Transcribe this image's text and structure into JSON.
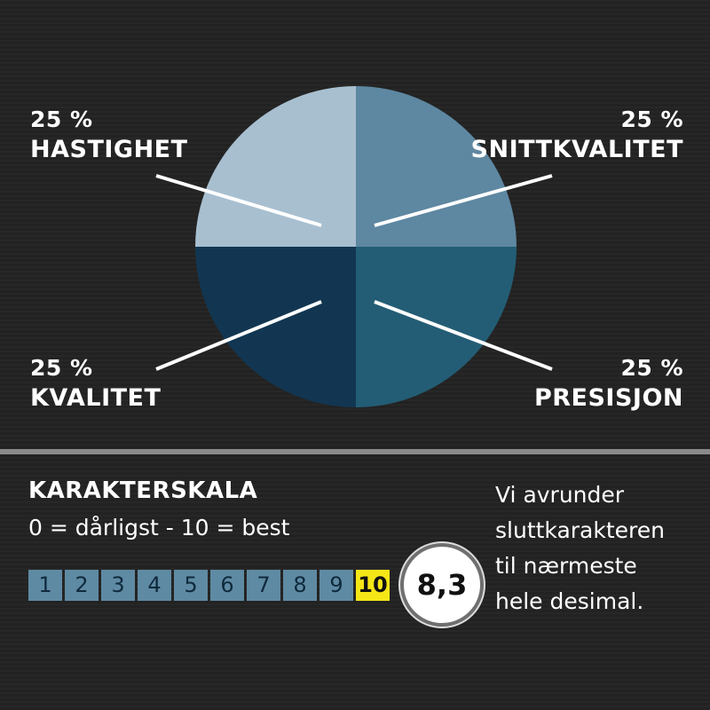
{
  "chart_data": {
    "type": "pie",
    "slices": [
      {
        "label": "SNITTKVALITET",
        "value": 25,
        "pct_text": "25 %",
        "color": "#5e87a1"
      },
      {
        "label": "PRESISJON",
        "value": 25,
        "pct_text": "25 %",
        "color": "#235d75"
      },
      {
        "label": "KVALITET",
        "value": 25,
        "pct_text": "25 %",
        "color": "#123651"
      },
      {
        "label": "HASTIGHET",
        "value": 25,
        "pct_text": "25 %",
        "color": "#a8bfd0"
      }
    ]
  },
  "scale": {
    "title": "KARAKTERSKALA",
    "subtitle": "0 = dårligst - 10 = best",
    "cells": [
      "1",
      "2",
      "3",
      "4",
      "5",
      "6",
      "7",
      "8",
      "9",
      "10"
    ],
    "score": "8,3",
    "highlight_color": "#f5e617"
  },
  "note": {
    "lines": [
      "Vi avrunder",
      "sluttkarakteren",
      "til nærmeste",
      "hele desimal."
    ]
  }
}
